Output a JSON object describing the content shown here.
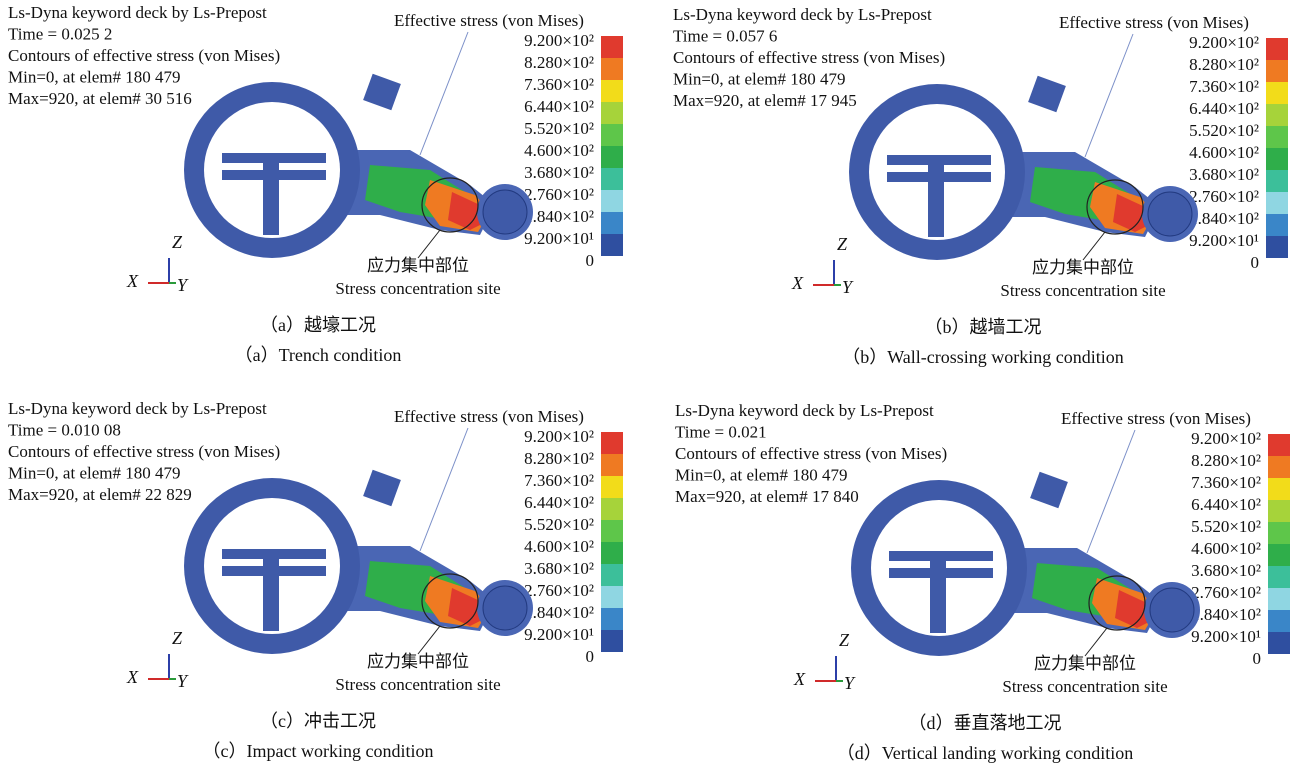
{
  "panels": [
    {
      "header": [
        "Ls-Dyna keyword deck by Ls-Prepost",
        "Time = 0.025 2",
        "Contours of effective stress (von Mises)",
        "Min=0, at elem# 180 479",
        "Max=920, at elem# 30 516"
      ],
      "legend_title": "Effective stress (von Mises)",
      "legend_labels": [
        "9.200×10²",
        "8.280×10²",
        "7.360×10²",
        "6.440×10²",
        "5.520×10²",
        "4.600×10²",
        "3.680×10²",
        "2.760×10²",
        "1.840×10²",
        "9.200×10¹",
        "0"
      ],
      "axes": {
        "z": "Z",
        "x": "X",
        "y": "Y"
      },
      "annotation_cn": "应力集中部位",
      "annotation_en": "Stress concentration site",
      "caption_cn": "（a）越壕工况",
      "caption_en": "（a）Trench condition"
    },
    {
      "header": [
        "Ls-Dyna keyword deck by Ls-Prepost",
        "Time = 0.057 6",
        "Contours of effective stress (von Mises)",
        "Min=0, at elem# 180 479",
        "Max=920, at elem# 17 945"
      ],
      "legend_title": "Effective stress (von Mises)",
      "legend_labels": [
        "9.200×10²",
        "8.280×10²",
        "7.360×10²",
        "6.440×10²",
        "5.520×10²",
        "4.600×10²",
        "3.680×10²",
        "2.760×10²",
        "1.840×10²",
        "9.200×10¹",
        "0"
      ],
      "axes": {
        "z": "Z",
        "x": "X",
        "y": "Y"
      },
      "annotation_cn": "应力集中部位",
      "annotation_en": "Stress concentration site",
      "caption_cn": "（b）越墙工况",
      "caption_en": "（b）Wall-crossing working condition"
    },
    {
      "header": [
        "Ls-Dyna keyword deck by Ls-Prepost",
        "Time = 0.010 08",
        "Contours of effective stress (von Mises)",
        "Min=0, at elem# 180 479",
        "Max=920, at elem# 22 829"
      ],
      "legend_title": "Effective stress (von Mises)",
      "legend_labels": [
        "9.200×10²",
        "8.280×10²",
        "7.360×10²",
        "6.440×10²",
        "5.520×10²",
        "4.600×10²",
        "3.680×10²",
        "2.760×10²",
        "1.840×10²",
        "9.200×10¹",
        "0"
      ],
      "axes": {
        "z": "Z",
        "x": "X",
        "y": "Y"
      },
      "annotation_cn": "应力集中部位",
      "annotation_en": "Stress concentration site",
      "caption_cn": "（c）冲击工况",
      "caption_en": "（c）Impact working condition"
    },
    {
      "header": [
        "Ls-Dyna keyword deck by Ls-Prepost",
        "Time = 0.021",
        "Contours of effective stress (von Mises)",
        "Min=0, at elem# 180 479",
        "Max=920, at elem# 17 840"
      ],
      "legend_title": "Effective stress (von Mises)",
      "legend_labels": [
        "9.200×10²",
        "8.280×10²",
        "7.360×10²",
        "6.440×10²",
        "5.520×10²",
        "4.600×10²",
        "3.680×10²",
        "2.760×10²",
        "1.840×10²",
        "9.200×10¹",
        "0"
      ],
      "axes": {
        "z": "Z",
        "x": "X",
        "y": "Y"
      },
      "annotation_cn": "应力集中部位",
      "annotation_en": "Stress concentration site",
      "caption_cn": "（d）垂直落地工况",
      "caption_en": "（d）Vertical landing working condition"
    }
  ]
}
